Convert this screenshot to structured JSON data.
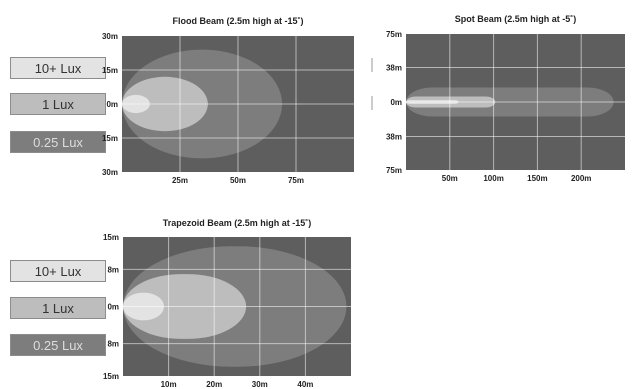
{
  "legends": [
    {
      "label": "10+ Lux",
      "color": "#e3e3e3",
      "text_color": "#333333"
    },
    {
      "label": "1 Lux",
      "color": "#bdbdbd",
      "text_color": "#333333"
    },
    {
      "label": "0.25 Lux",
      "color": "#7d7d7d",
      "text_color": "#dddddd"
    }
  ],
  "colors": {
    "background": "#5e5e5e",
    "gridline": "#ffffff",
    "lux_10": "#e3e3e3",
    "lux_1": "#bdbdbd",
    "lux_025": "#7d7d7d"
  },
  "chart_data": [
    {
      "type": "area",
      "title": "Flood Beam (2.5m high at -15˚)",
      "xlim": [
        0,
        100
      ],
      "ylim": [
        -30,
        30
      ],
      "x_ticks": [
        25,
        50,
        75
      ],
      "x_tick_labels": [
        "25m",
        "50m",
        "75m"
      ],
      "y_ticks": [
        30,
        15,
        0,
        -15,
        -30
      ],
      "y_tick_labels": [
        "30m",
        "15m",
        "0m",
        "15m",
        "30m"
      ],
      "grid": true,
      "regions": [
        {
          "level": "0.25 Lux",
          "x_max": 69,
          "y_half_width": 24
        },
        {
          "level": "1 Lux",
          "x_max": 37,
          "y_half_width": 12
        },
        {
          "level": "10+ Lux",
          "x_max": 12,
          "y_half_width": 4
        }
      ]
    },
    {
      "type": "area",
      "title": "Spot Beam (2.5m high at -5˚)",
      "xlim": [
        0,
        250
      ],
      "ylim": [
        -75,
        75
      ],
      "x_ticks": [
        50,
        100,
        150,
        200
      ],
      "x_tick_labels": [
        "50m",
        "100m",
        "150m",
        "200m"
      ],
      "y_ticks": [
        75,
        38,
        0,
        -38,
        -75
      ],
      "y_tick_labels": [
        "75m",
        "38m",
        "0m",
        "38m",
        "75m"
      ],
      "grid": true,
      "regions": [
        {
          "level": "0.25 Lux",
          "x_max": 237,
          "y_half_width": 16
        },
        {
          "level": "1 Lux",
          "x_max": 102,
          "y_half_width": 6
        },
        {
          "level": "10+ Lux",
          "x_max": 60,
          "y_half_width": 2
        }
      ]
    },
    {
      "type": "area",
      "title": "Trapezoid Beam (2.5m high at -15˚)",
      "xlim": [
        0,
        50
      ],
      "ylim": [
        -15,
        15
      ],
      "x_ticks": [
        10,
        20,
        30,
        40
      ],
      "x_tick_labels": [
        "10m",
        "20m",
        "30m",
        "40m"
      ],
      "y_ticks": [
        15,
        8,
        0,
        -8,
        -15
      ],
      "y_tick_labels": [
        "15m",
        "8m",
        "0m",
        "8m",
        "15m"
      ],
      "grid": true,
      "regions": [
        {
          "level": "0.25 Lux",
          "x_max": 49,
          "y_half_width": 13
        },
        {
          "level": "1 Lux",
          "x_max": 27,
          "y_half_width": 7
        },
        {
          "level": "10+ Lux",
          "x_max": 9,
          "y_half_width": 3
        }
      ]
    }
  ]
}
